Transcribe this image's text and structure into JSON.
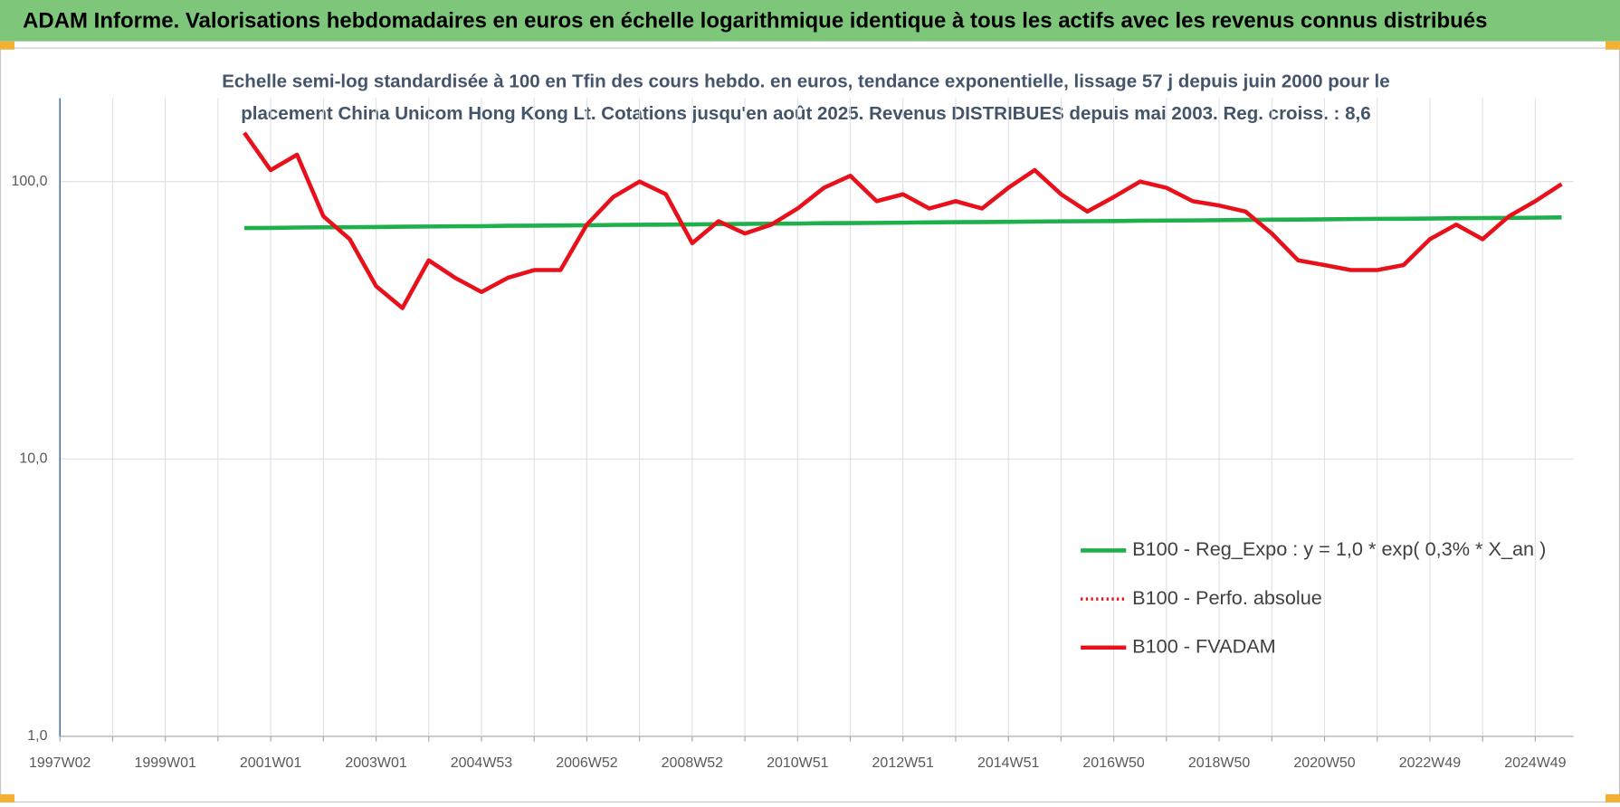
{
  "header": {
    "title": "ADAM Informe. Valorisations hebdomadaires en euros en échelle logarithmique identique à tous les actifs avec les revenus connus distribués"
  },
  "chart_data": {
    "type": "line",
    "subtitle": [
      "Echelle semi-log standardisée à 100 en Tfin des cours hebdo. en euros, tendance exponentielle, lissage 57 j depuis juin 2000 pour le",
      "placement China Unicom Hong Kong Lt. Cotations jusqu'en août 2025. Revenus DISTRIBUES depuis mai 2003. Reg. croiss. : 8,6"
    ],
    "categories": [
      "1997W02",
      null,
      null,
      null,
      "1999W01",
      null,
      null,
      null,
      "2001W01",
      null,
      null,
      null,
      "2003W01",
      null,
      null,
      null,
      "2004W53",
      null,
      null,
      null,
      "2006W52",
      null,
      null,
      null,
      "2008W52",
      null,
      null,
      null,
      "2010W51",
      null,
      null,
      null,
      "2012W51",
      null,
      null,
      null,
      "2014W51",
      null,
      null,
      null,
      "2016W50",
      null,
      null,
      null,
      "2018W50",
      null,
      null,
      null,
      "2020W50",
      null,
      null,
      null,
      "2022W49",
      null,
      null,
      null,
      "2024W49",
      null
    ],
    "log_scale": true,
    "ylim": [
      1,
      200
    ],
    "yticks": [
      {
        "value": 1,
        "label": "1,0"
      },
      {
        "value": 10,
        "label": "10,0"
      },
      {
        "value": 100,
        "label": "100,0"
      }
    ],
    "grid": true,
    "legend": "bottom-right",
    "series": [
      {
        "name": "B100 - Reg_Expo : y = 1,0 * exp( 0,3% *  X_an )",
        "color": "#1db04b",
        "style": "solid",
        "values": [
          null,
          null,
          null,
          null,
          null,
          null,
          null,
          68,
          68.1,
          68.3,
          68.4,
          68.5,
          68.6,
          68.8,
          68.9,
          69,
          69.1,
          69.3,
          69.4,
          69.5,
          69.6,
          69.8,
          69.9,
          70,
          70.1,
          70.3,
          70.4,
          70.5,
          70.6,
          70.8,
          70.9,
          71,
          71.1,
          71.3,
          71.4,
          71.5,
          71.6,
          71.8,
          71.9,
          72,
          72.1,
          72.3,
          72.4,
          72.5,
          72.6,
          72.8,
          72.9,
          73,
          73.1,
          73.3,
          73.4,
          73.5,
          73.6,
          73.8,
          73.9,
          74,
          74.1,
          74.3
        ]
      },
      {
        "name": "B100 - Perfo. absolue",
        "color": "#e8101a",
        "style": "dotted",
        "values": [
          null,
          null,
          null,
          null,
          null,
          null,
          null,
          150,
          110,
          125,
          75,
          62,
          42,
          35,
          52,
          45,
          40,
          45,
          48,
          48,
          70,
          88,
          100,
          90,
          60,
          72,
          65,
          70,
          80,
          95,
          105,
          85,
          90,
          80,
          85,
          80,
          95,
          110,
          90,
          78,
          88,
          100,
          95,
          85,
          82,
          78,
          65,
          52,
          50,
          48,
          48,
          50,
          62,
          70,
          62,
          75,
          85,
          98
        ]
      },
      {
        "name": "B100 - FVADAM",
        "color": "#e8101a",
        "style": "solid",
        "values": [
          null,
          null,
          null,
          null,
          null,
          null,
          null,
          150,
          110,
          125,
          75,
          62,
          42,
          35,
          52,
          45,
          40,
          45,
          48,
          48,
          70,
          88,
          100,
          90,
          60,
          72,
          65,
          70,
          80,
          95,
          105,
          85,
          90,
          80,
          85,
          80,
          95,
          110,
          90,
          78,
          88,
          100,
          95,
          85,
          82,
          78,
          65,
          52,
          50,
          48,
          48,
          50,
          62,
          70,
          62,
          75,
          85,
          98
        ]
      }
    ]
  }
}
